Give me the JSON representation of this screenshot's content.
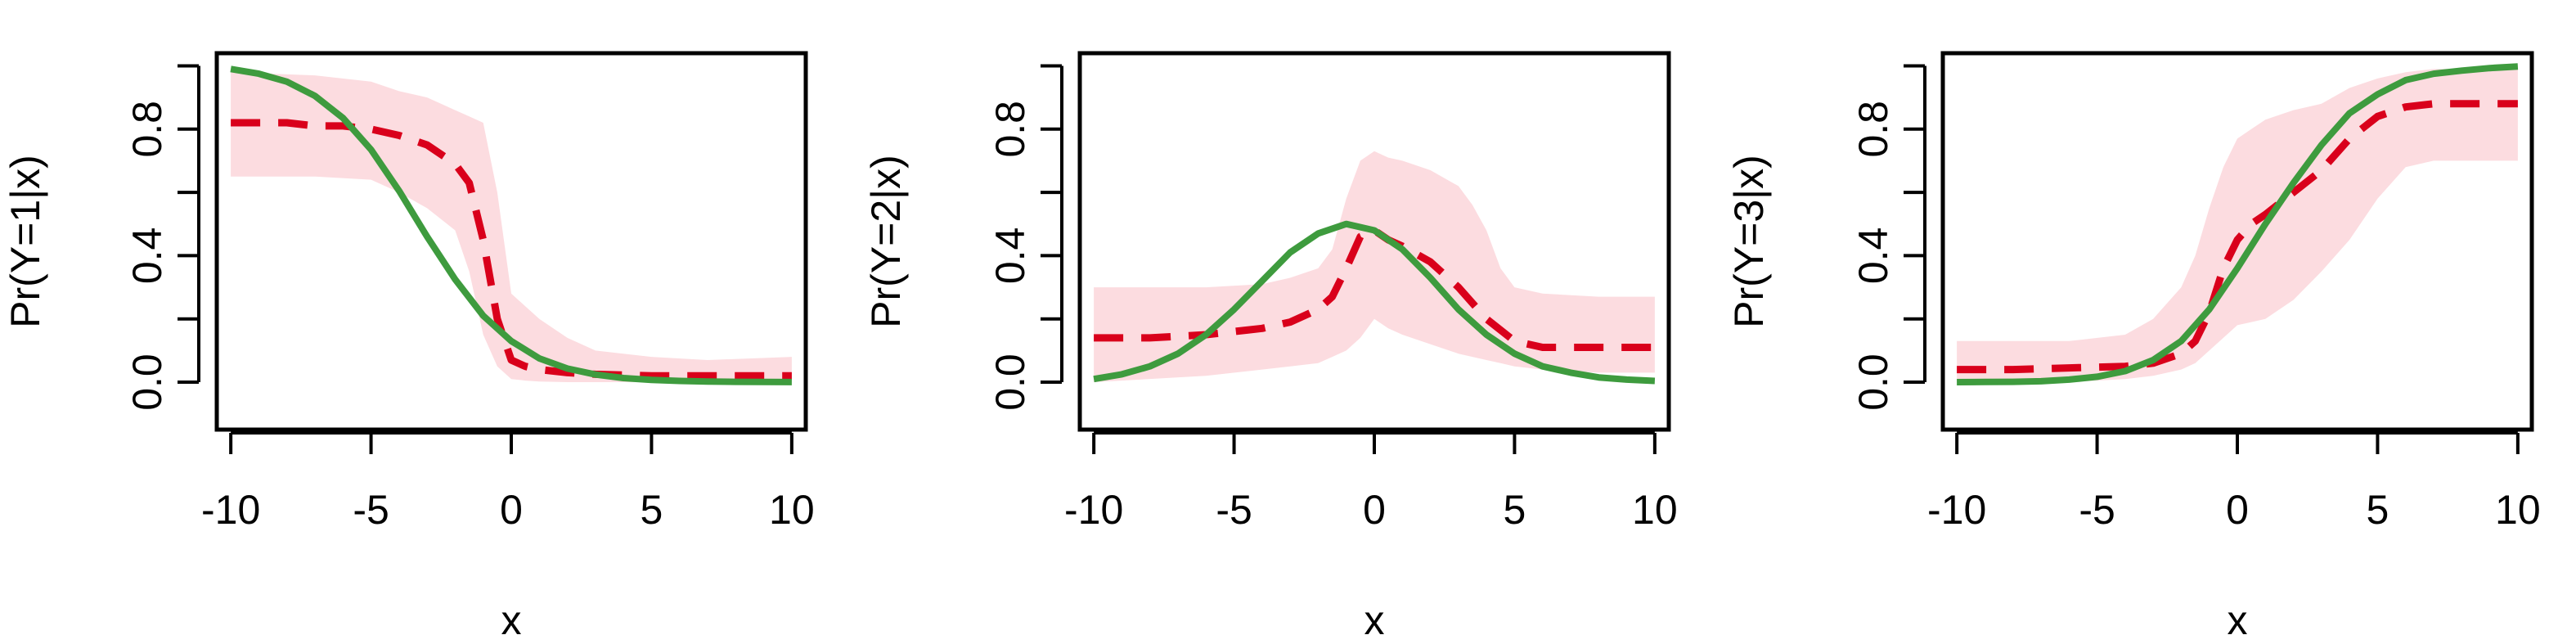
{
  "chart_data": [
    {
      "type": "line",
      "xlabel": "x",
      "ylabel": "Pr(Y=1|x)",
      "xlim": [
        -10.5,
        10.5
      ],
      "ylim": [
        -0.15,
        1.04
      ],
      "xticks": [
        -10,
        -5,
        0,
        5,
        10
      ],
      "yticks": [
        0.0,
        0.4,
        0.8
      ],
      "yticks_minor": [
        0.2,
        0.6,
        1.0
      ],
      "xtick_labels": [
        "-10",
        "-5",
        "0",
        "5",
        "10"
      ],
      "ytick_labels": [
        "0.0",
        "0.4",
        "0.8"
      ],
      "grid": false,
      "colors": {
        "band": "#fcdce0",
        "estimate": "#d9001b",
        "truth": "#3e9b3e"
      },
      "band": {
        "x": [
          -10,
          -7,
          -5,
          -4,
          -3,
          -2,
          -1.5,
          -1,
          -0.5,
          0,
          0.5,
          1,
          2,
          3,
          5,
          7,
          10
        ],
        "lower": [
          0.65,
          0.65,
          0.64,
          0.6,
          0.55,
          0.48,
          0.35,
          0.15,
          0.05,
          0.01,
          0.005,
          0.002,
          0,
          0,
          0,
          0,
          0
        ],
        "upper": [
          0.98,
          0.97,
          0.95,
          0.92,
          0.9,
          0.86,
          0.84,
          0.82,
          0.6,
          0.28,
          0.24,
          0.2,
          0.14,
          0.1,
          0.08,
          0.07,
          0.08
        ]
      },
      "series": [
        {
          "style": "dashed",
          "x": [
            -10,
            -9,
            -8,
            -7,
            -6,
            -5,
            -4,
            -3,
            -2,
            -1.5,
            -1,
            -0.5,
            0,
            0.5,
            1,
            2,
            3,
            5,
            7,
            10
          ],
          "y": [
            0.82,
            0.82,
            0.82,
            0.81,
            0.81,
            0.8,
            0.78,
            0.75,
            0.69,
            0.63,
            0.45,
            0.2,
            0.07,
            0.05,
            0.04,
            0.03,
            0.025,
            0.02,
            0.02,
            0.02
          ]
        },
        {
          "style": "solid",
          "x": [
            -10,
            -9,
            -8,
            -7,
            -6,
            -5,
            -4,
            -3,
            -2,
            -1,
            0,
            1,
            2,
            3,
            4,
            5,
            6,
            7,
            8,
            9,
            10
          ],
          "y": [
            0.99,
            0.975,
            0.95,
            0.905,
            0.835,
            0.735,
            0.605,
            0.46,
            0.325,
            0.21,
            0.13,
            0.075,
            0.043,
            0.024,
            0.013,
            0.007,
            0.004,
            0.002,
            0.001,
            0.0005,
            0.0003
          ]
        }
      ]
    },
    {
      "type": "line",
      "xlabel": "x",
      "ylabel": "Pr(Y=2|x)",
      "xlim": [
        -10.5,
        10.5
      ],
      "ylim": [
        -0.15,
        1.04
      ],
      "xticks": [
        -10,
        -5,
        0,
        5,
        10
      ],
      "yticks": [
        0.0,
        0.4,
        0.8
      ],
      "yticks_minor": [
        0.2,
        0.6,
        1.0
      ],
      "xtick_labels": [
        "-10",
        "-5",
        "0",
        "5",
        "10"
      ],
      "ytick_labels": [
        "0.0",
        "0.4",
        "0.8"
      ],
      "grid": false,
      "colors": {
        "band": "#fcdce0",
        "estimate": "#d9001b",
        "truth": "#3e9b3e"
      },
      "band": {
        "x": [
          -10,
          -6,
          -4,
          -3,
          -2,
          -1.5,
          -1,
          -0.5,
          0,
          0.5,
          1,
          2,
          3,
          3.5,
          4,
          4.5,
          5,
          6,
          8,
          10
        ],
        "lower": [
          0,
          0.02,
          0.04,
          0.05,
          0.06,
          0.08,
          0.1,
          0.14,
          0.2,
          0.17,
          0.15,
          0.12,
          0.09,
          0.08,
          0.07,
          0.06,
          0.05,
          0.04,
          0.03,
          0.03
        ],
        "upper": [
          0.3,
          0.3,
          0.31,
          0.33,
          0.36,
          0.42,
          0.58,
          0.7,
          0.73,
          0.71,
          0.7,
          0.67,
          0.62,
          0.56,
          0.48,
          0.36,
          0.3,
          0.28,
          0.27,
          0.27
        ]
      },
      "series": [
        {
          "style": "dashed",
          "x": [
            -10,
            -8,
            -6,
            -4,
            -3,
            -2,
            -1.5,
            -1,
            -0.5,
            0,
            0.5,
            1,
            2,
            3,
            4,
            5,
            6,
            8,
            10
          ],
          "y": [
            0.14,
            0.14,
            0.15,
            0.17,
            0.19,
            0.23,
            0.27,
            0.36,
            0.46,
            0.48,
            0.45,
            0.43,
            0.38,
            0.3,
            0.2,
            0.13,
            0.11,
            0.11,
            0.11
          ],
          "note_style": ""
        },
        {
          "style": "solid",
          "x": [
            -10,
            -9,
            -8,
            -7,
            -6,
            -5,
            -4,
            -3,
            -2,
            -1,
            0,
            1,
            2,
            3,
            4,
            5,
            6,
            7,
            8,
            9,
            10
          ],
          "y": [
            0.01,
            0.025,
            0.05,
            0.09,
            0.15,
            0.23,
            0.32,
            0.41,
            0.47,
            0.5,
            0.48,
            0.42,
            0.33,
            0.23,
            0.15,
            0.09,
            0.05,
            0.03,
            0.015,
            0.008,
            0.004
          ]
        }
      ]
    },
    {
      "type": "line",
      "xlabel": "x",
      "ylabel": "Pr(Y=3|x)",
      "xlim": [
        -10.5,
        10.5
      ],
      "ylim": [
        -0.15,
        1.04
      ],
      "xticks": [
        -10,
        -5,
        0,
        5,
        10
      ],
      "yticks": [
        0.0,
        0.4,
        0.8
      ],
      "yticks_minor": [
        0.2,
        0.6,
        1.0
      ],
      "xtick_labels": [
        "-10",
        "-5",
        "0",
        "5",
        "10"
      ],
      "ytick_labels": [
        "0.0",
        "0.4",
        "0.8"
      ],
      "grid": false,
      "colors": {
        "band": "#fcdce0",
        "estimate": "#d9001b",
        "truth": "#3e9b3e"
      },
      "band": {
        "x": [
          -10,
          -6,
          -4,
          -3,
          -2,
          -1.5,
          -1,
          -0.5,
          0,
          0.5,
          1,
          2,
          3,
          4,
          5,
          6,
          7,
          8,
          10
        ],
        "lower": [
          0,
          0,
          0.01,
          0.02,
          0.04,
          0.06,
          0.1,
          0.14,
          0.18,
          0.19,
          0.2,
          0.26,
          0.35,
          0.45,
          0.58,
          0.68,
          0.7,
          0.7,
          0.7
        ],
        "upper": [
          0.13,
          0.13,
          0.15,
          0.2,
          0.3,
          0.4,
          0.55,
          0.68,
          0.77,
          0.8,
          0.83,
          0.86,
          0.88,
          0.93,
          0.96,
          0.98,
          0.99,
          0.99,
          1.0
        ]
      },
      "series": [
        {
          "style": "dashed",
          "x": [
            -10,
            -8,
            -6,
            -4,
            -3,
            -2,
            -1.5,
            -1,
            -0.5,
            0,
            0.5,
            1,
            2,
            3,
            4,
            5,
            6,
            7,
            8,
            10
          ],
          "y": [
            0.04,
            0.04,
            0.045,
            0.05,
            0.06,
            0.09,
            0.13,
            0.22,
            0.36,
            0.45,
            0.5,
            0.53,
            0.6,
            0.67,
            0.77,
            0.84,
            0.87,
            0.88,
            0.88,
            0.88
          ]
        },
        {
          "style": "solid",
          "x": [
            -10,
            -9,
            -8,
            -7,
            -6,
            -5,
            -4,
            -3,
            -2,
            -1,
            0,
            1,
            2,
            3,
            4,
            5,
            6,
            7,
            8,
            9,
            10
          ],
          "y": [
            0.0,
            0.0005,
            0.001,
            0.003,
            0.008,
            0.017,
            0.035,
            0.07,
            0.13,
            0.23,
            0.36,
            0.5,
            0.63,
            0.75,
            0.85,
            0.91,
            0.955,
            0.975,
            0.985,
            0.993,
            0.998
          ]
        }
      ]
    }
  ]
}
